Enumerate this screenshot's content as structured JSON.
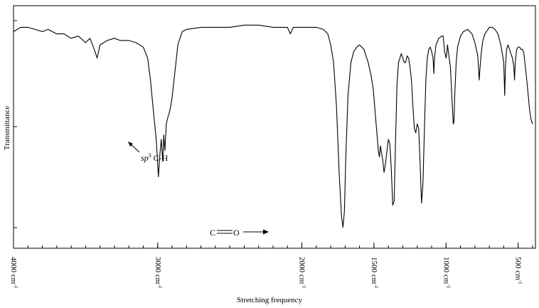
{
  "chart_data": {
    "type": "line",
    "title": "",
    "xlabel": "Stretching frequency",
    "ylabel": "Transmittance",
    "x_reversed": true,
    "xlim": [
      4000,
      380
    ],
    "ylim": [
      0,
      1
    ],
    "x_tick_labels": [
      {
        "value": 4000,
        "label": "4000 cm-1"
      },
      {
        "value": 3000,
        "label": "3000 cm-1"
      },
      {
        "value": 2000,
        "label": "2000 cm-1"
      },
      {
        "value": 1500,
        "label": "1500 cm-1"
      },
      {
        "value": 1000,
        "label": "1000 cm-1"
      },
      {
        "value": 500,
        "label": "500 cm-1"
      }
    ],
    "annotations": [
      {
        "label_italic": "sp",
        "label_sup": "3",
        "label_rest": " C-H",
        "x": 2960,
        "y": 0.44
      },
      {
        "label_left": "C",
        "label_right": "O",
        "x": 1715,
        "y": 0.05
      }
    ],
    "series": [
      {
        "points": [
          [
            4000,
            0.94
          ],
          [
            3950,
            0.96
          ],
          [
            3900,
            0.96
          ],
          [
            3850,
            0.95
          ],
          [
            3800,
            0.94
          ],
          [
            3760,
            0.95
          ],
          [
            3700,
            0.93
          ],
          [
            3650,
            0.93
          ],
          [
            3600,
            0.91
          ],
          [
            3550,
            0.92
          ],
          [
            3500,
            0.89
          ],
          [
            3470,
            0.91
          ],
          [
            3440,
            0.86
          ],
          [
            3420,
            0.82
          ],
          [
            3400,
            0.88
          ],
          [
            3350,
            0.9
          ],
          [
            3300,
            0.91
          ],
          [
            3260,
            0.9
          ],
          [
            3200,
            0.9
          ],
          [
            3150,
            0.89
          ],
          [
            3100,
            0.87
          ],
          [
            3070,
            0.82
          ],
          [
            3050,
            0.72
          ],
          [
            3030,
            0.58
          ],
          [
            3010,
            0.45
          ],
          [
            2995,
            0.28
          ],
          [
            2985,
            0.38
          ],
          [
            2975,
            0.45
          ],
          [
            2965,
            0.35
          ],
          [
            2958,
            0.47
          ],
          [
            2950,
            0.4
          ],
          [
            2940,
            0.52
          ],
          [
            2930,
            0.55
          ],
          [
            2920,
            0.57
          ],
          [
            2910,
            0.6
          ],
          [
            2900,
            0.64
          ],
          [
            2880,
            0.76
          ],
          [
            2860,
            0.88
          ],
          [
            2830,
            0.94
          ],
          [
            2800,
            0.95
          ],
          [
            2700,
            0.96
          ],
          [
            2600,
            0.96
          ],
          [
            2500,
            0.96
          ],
          [
            2400,
            0.97
          ],
          [
            2300,
            0.97
          ],
          [
            2200,
            0.96
          ],
          [
            2100,
            0.96
          ],
          [
            2080,
            0.93
          ],
          [
            2060,
            0.96
          ],
          [
            2000,
            0.96
          ],
          [
            1900,
            0.96
          ],
          [
            1850,
            0.95
          ],
          [
            1820,
            0.93
          ],
          [
            1800,
            0.88
          ],
          [
            1780,
            0.8
          ],
          [
            1760,
            0.6
          ],
          [
            1740,
            0.28
          ],
          [
            1725,
            0.1
          ],
          [
            1715,
            0.05
          ],
          [
            1705,
            0.12
          ],
          [
            1695,
            0.38
          ],
          [
            1680,
            0.65
          ],
          [
            1660,
            0.8
          ],
          [
            1640,
            0.85
          ],
          [
            1620,
            0.87
          ],
          [
            1600,
            0.88
          ],
          [
            1570,
            0.86
          ],
          [
            1540,
            0.8
          ],
          [
            1520,
            0.74
          ],
          [
            1505,
            0.68
          ],
          [
            1495,
            0.6
          ],
          [
            1480,
            0.48
          ],
          [
            1470,
            0.4
          ],
          [
            1462,
            0.37
          ],
          [
            1455,
            0.42
          ],
          [
            1450,
            0.4
          ],
          [
            1440,
            0.36
          ],
          [
            1430,
            0.3
          ],
          [
            1420,
            0.34
          ],
          [
            1410,
            0.4
          ],
          [
            1400,
            0.45
          ],
          [
            1390,
            0.43
          ],
          [
            1380,
            0.32
          ],
          [
            1370,
            0.15
          ],
          [
            1360,
            0.17
          ],
          [
            1350,
            0.45
          ],
          [
            1340,
            0.7
          ],
          [
            1330,
            0.8
          ],
          [
            1310,
            0.84
          ],
          [
            1300,
            0.82
          ],
          [
            1290,
            0.8
          ],
          [
            1280,
            0.8
          ],
          [
            1270,
            0.83
          ],
          [
            1260,
            0.82
          ],
          [
            1250,
            0.78
          ],
          [
            1240,
            0.72
          ],
          [
            1230,
            0.6
          ],
          [
            1220,
            0.5
          ],
          [
            1210,
            0.48
          ],
          [
            1200,
            0.52
          ],
          [
            1190,
            0.5
          ],
          [
            1180,
            0.34
          ],
          [
            1170,
            0.16
          ],
          [
            1160,
            0.25
          ],
          [
            1150,
            0.5
          ],
          [
            1140,
            0.72
          ],
          [
            1130,
            0.82
          ],
          [
            1120,
            0.86
          ],
          [
            1110,
            0.87
          ],
          [
            1100,
            0.85
          ],
          [
            1090,
            0.82
          ],
          [
            1085,
            0.75
          ],
          [
            1080,
            0.82
          ],
          [
            1070,
            0.88
          ],
          [
            1050,
            0.91
          ],
          [
            1030,
            0.92
          ],
          [
            1020,
            0.92
          ],
          [
            1010,
            0.85
          ],
          [
            1000,
            0.82
          ],
          [
            995,
            0.84
          ],
          [
            990,
            0.88
          ],
          [
            980,
            0.83
          ],
          [
            970,
            0.78
          ],
          [
            960,
            0.65
          ],
          [
            950,
            0.52
          ],
          [
            945,
            0.53
          ],
          [
            940,
            0.65
          ],
          [
            930,
            0.8
          ],
          [
            920,
            0.87
          ],
          [
            900,
            0.92
          ],
          [
            880,
            0.94
          ],
          [
            850,
            0.95
          ],
          [
            820,
            0.93
          ],
          [
            800,
            0.89
          ],
          [
            790,
            0.86
          ],
          [
            780,
            0.83
          ],
          [
            770,
            0.72
          ],
          [
            765,
            0.77
          ],
          [
            755,
            0.85
          ],
          [
            745,
            0.9
          ],
          [
            730,
            0.93
          ],
          [
            710,
            0.95
          ],
          [
            700,
            0.96
          ],
          [
            680,
            0.96
          ],
          [
            660,
            0.95
          ],
          [
            640,
            0.93
          ],
          [
            620,
            0.88
          ],
          [
            610,
            0.84
          ],
          [
            600,
            0.8
          ],
          [
            593,
            0.65
          ],
          [
            588,
            0.78
          ],
          [
            580,
            0.86
          ],
          [
            570,
            0.88
          ],
          [
            560,
            0.86
          ],
          [
            550,
            0.84
          ],
          [
            540,
            0.82
          ],
          [
            530,
            0.78
          ],
          [
            525,
            0.72
          ],
          [
            520,
            0.8
          ],
          [
            510,
            0.86
          ],
          [
            500,
            0.87
          ],
          [
            490,
            0.87
          ],
          [
            480,
            0.86
          ],
          [
            470,
            0.86
          ],
          [
            460,
            0.84
          ],
          [
            450,
            0.78
          ],
          [
            440,
            0.72
          ],
          [
            430,
            0.65
          ],
          [
            420,
            0.58
          ],
          [
            410,
            0.54
          ],
          [
            400,
            0.52
          ]
        ]
      }
    ]
  }
}
